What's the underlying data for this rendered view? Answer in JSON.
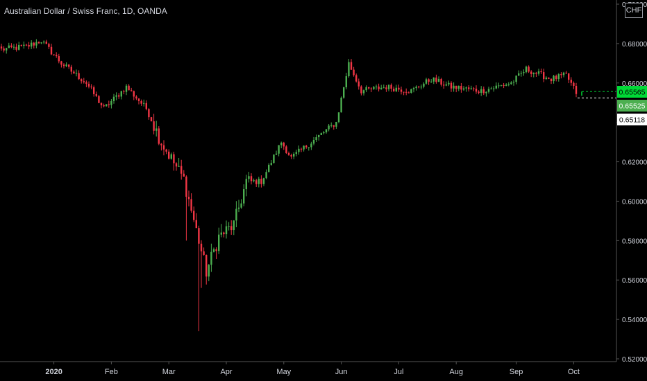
{
  "header": {
    "title": "Australian Dollar / Swiss Franc, 1D, OANDA",
    "currency": "CHF"
  },
  "chart_data": {
    "type": "candlestick",
    "ylim": [
      0.52,
      0.7
    ],
    "y_ticks": [
      "0.70000",
      "0.68000",
      "0.66000",
      "0.64000",
      "0.62000",
      "0.60000",
      "0.58000",
      "0.56000",
      "0.54000",
      "0.52000"
    ],
    "x_ticks": [
      "2020",
      "Feb",
      "Mar",
      "Apr",
      "May",
      "Jun",
      "Jul",
      "Aug",
      "Sep",
      "Oct"
    ],
    "anchors": [
      {
        "d": 0,
        "v": 0.677
      },
      {
        "d": 10,
        "v": 0.6785
      },
      {
        "d": 16,
        "v": 0.6815
      },
      {
        "d": 24,
        "v": 0.67
      },
      {
        "d": 34,
        "v": 0.66
      },
      {
        "d": 41,
        "v": 0.647
      },
      {
        "d": 50,
        "v": 0.658
      },
      {
        "d": 58,
        "v": 0.647
      },
      {
        "d": 64,
        "v": 0.63
      },
      {
        "d": 73,
        "v": 0.611
      },
      {
        "d": 79,
        "v": 0.58
      },
      {
        "d": 82,
        "v": 0.564
      },
      {
        "d": 87,
        "v": 0.582
      },
      {
        "d": 93,
        "v": 0.588
      },
      {
        "d": 98,
        "v": 0.61
      },
      {
        "d": 104,
        "v": 0.61
      },
      {
        "d": 112,
        "v": 0.63
      },
      {
        "d": 116,
        "v": 0.622
      },
      {
        "d": 124,
        "v": 0.63
      },
      {
        "d": 134,
        "v": 0.64
      },
      {
        "d": 139,
        "v": 0.67
      },
      {
        "d": 144,
        "v": 0.656
      },
      {
        "d": 154,
        "v": 0.658
      },
      {
        "d": 164,
        "v": 0.656
      },
      {
        "d": 172,
        "v": 0.662
      },
      {
        "d": 180,
        "v": 0.658
      },
      {
        "d": 192,
        "v": 0.656
      },
      {
        "d": 204,
        "v": 0.66
      },
      {
        "d": 210,
        "v": 0.667
      },
      {
        "d": 220,
        "v": 0.662
      },
      {
        "d": 226,
        "v": 0.664
      },
      {
        "d": 230,
        "v": 0.655
      }
    ],
    "spikes": [
      {
        "d": 74,
        "low": 0.58
      },
      {
        "d": 79,
        "low": 0.534
      },
      {
        "d": 80,
        "low": 0.556
      }
    ],
    "current": {
      "label": "0.65565",
      "value": 0.65565,
      "color": "#00d936"
    },
    "price_labels": [
      {
        "label": "0.65565",
        "value": 0.65565,
        "bg": "#00d936",
        "fg": "#000000"
      },
      {
        "label": "0.65525",
        "value": 0.65525,
        "bg": "#4caf50",
        "fg": "#ffffff"
      },
      {
        "label": "0.65118",
        "value": 0.65118,
        "bg": "#ffffff",
        "fg": "#000000"
      }
    ],
    "colors": {
      "up": "#4caf50",
      "down": "#f23645",
      "axis_text": "#d1d4dc",
      "background": "#000000",
      "axis_line": "#555555"
    }
  }
}
